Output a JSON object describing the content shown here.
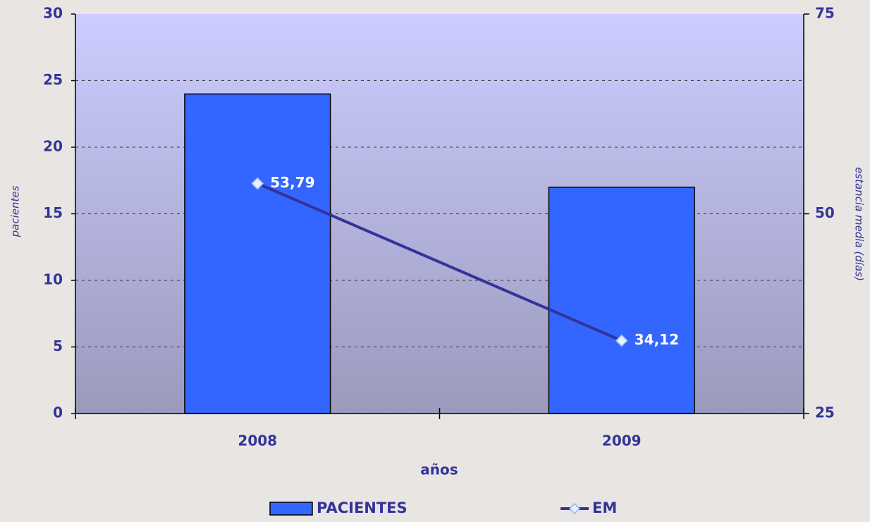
{
  "chart_data": {
    "type": "bar_line",
    "xlabel": "años",
    "ylabel": "pacientes",
    "y2label": "estancia media (días)",
    "categories": [
      "2008",
      "2009"
    ],
    "series": [
      {
        "name": "PACIENTES",
        "type": "bar",
        "color": "#3366ff",
        "values": [
          24,
          17
        ]
      },
      {
        "name": "EM",
        "type": "line",
        "axis": "y2",
        "color": "#333399",
        "values": [
          53.79,
          34.12
        ],
        "value_labels": [
          "53,79",
          "34,12"
        ]
      }
    ],
    "ylim": [
      0,
      30
    ],
    "yticks": [
      0,
      5,
      10,
      15,
      20,
      25,
      30
    ],
    "y2lim": [
      25,
      75
    ],
    "y2ticks": [
      25,
      50,
      75
    ],
    "grid": true,
    "legend": "bottom"
  }
}
